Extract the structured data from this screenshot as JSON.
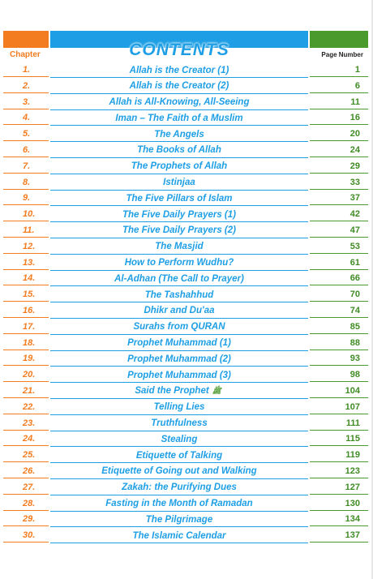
{
  "header": {
    "title": "CONTENTS",
    "chapter_label": "Chapter",
    "page_label": "Page Number"
  },
  "colors": {
    "orange": "#f47c20",
    "blue": "#1e9fe5",
    "green": "#4b9a2e"
  },
  "entries": [
    {
      "num": "1.",
      "title": "Allah is the Creator (1)",
      "page": "1"
    },
    {
      "num": "2.",
      "title": "Allah is the Creator (2)",
      "page": "6"
    },
    {
      "num": "3.",
      "title": "Allah is All-Knowing, All-Seeing",
      "page": "11"
    },
    {
      "num": "4.",
      "title": "Iman – The Faith of a Muslim",
      "page": "16"
    },
    {
      "num": "5.",
      "title": "The Angels",
      "page": "20"
    },
    {
      "num": "6.",
      "title": "The Books of Allah",
      "page": "24"
    },
    {
      "num": "7.",
      "title": "The Prophets of Allah",
      "page": "29"
    },
    {
      "num": "8.",
      "title": "Istinjaa",
      "page": "33"
    },
    {
      "num": "9.",
      "title": "The Five Pillars of Islam",
      "page": "37"
    },
    {
      "num": "10.",
      "title": "The Five Daily Prayers (1)",
      "page": "42"
    },
    {
      "num": "11.",
      "title": "The Five Daily Prayers (2)",
      "page": "47"
    },
    {
      "num": "12.",
      "title": "The Masjid",
      "page": "53"
    },
    {
      "num": "13.",
      "title": "How to Perform Wudhu?",
      "page": "61"
    },
    {
      "num": "14.",
      "title": "Al-Adhan (The Call to Prayer)",
      "page": "66"
    },
    {
      "num": "15.",
      "title": "The Tashahhud",
      "page": "70"
    },
    {
      "num": "16.",
      "title": "Dhikr and Du'aa",
      "page": "74"
    },
    {
      "num": "17.",
      "title": "Surahs from QURAN",
      "page": "85"
    },
    {
      "num": "18.",
      "title": "Prophet Muhammad (1)",
      "page": "88"
    },
    {
      "num": "19.",
      "title": "Prophet Muhammad (2)",
      "page": "93"
    },
    {
      "num": "20.",
      "title": "Prophet Muhammad (3)",
      "page": "98"
    },
    {
      "num": "21.",
      "title": "Said the Prophet",
      "page": "104",
      "honorific": "ﷺ"
    },
    {
      "num": "22.",
      "title": "Telling Lies",
      "page": "107"
    },
    {
      "num": "23.",
      "title": "Truthfulness",
      "page": "111"
    },
    {
      "num": "24.",
      "title": "Stealing",
      "page": "115"
    },
    {
      "num": "25.",
      "title": "Etiquette of Talking",
      "page": "119"
    },
    {
      "num": "26.",
      "title": "Etiquette of Going out and Walking",
      "page": "123"
    },
    {
      "num": "27.",
      "title": "Zakah: the Purifying Dues",
      "page": "127"
    },
    {
      "num": "28.",
      "title": "Fasting in the Month of Ramadan",
      "page": "130"
    },
    {
      "num": "29.",
      "title": "The Pilgrimage",
      "page": "134"
    },
    {
      "num": "30.",
      "title": "The Islamic Calendar",
      "page": "137"
    }
  ]
}
